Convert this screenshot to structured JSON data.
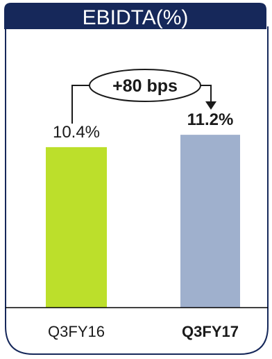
{
  "chart_data": {
    "type": "bar",
    "title": "EBIDTA(%)",
    "categories": [
      "Q3FY16",
      "Q3FY17"
    ],
    "values": [
      10.4,
      11.2
    ],
    "value_labels": [
      "10.4%",
      "11.2%"
    ],
    "bold_category": "Q3FY17",
    "annotation": "+80 bps",
    "ylim": [
      0,
      16.2
    ],
    "grid": false,
    "legend": "none"
  },
  "colors": {
    "title_bg": "#16285a",
    "frame": "#16285a",
    "bar_1": "#bcdf2b",
    "bar_2": "#9fb0cd",
    "axis": "#000000"
  }
}
